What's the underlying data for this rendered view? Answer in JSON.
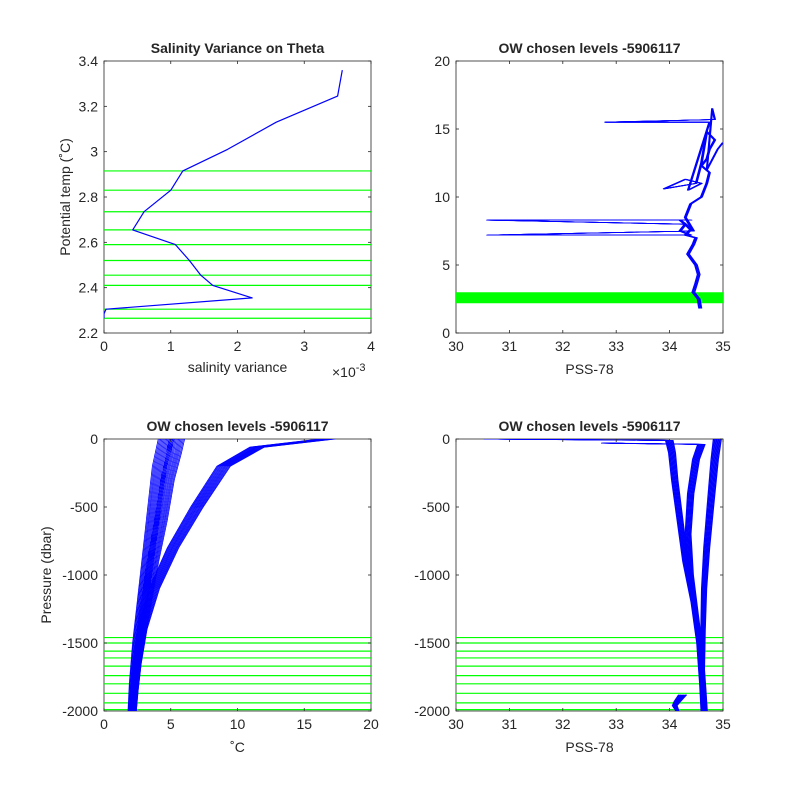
{
  "chart_data": [
    {
      "id": "p1",
      "type": "line",
      "title": "Salinity Variance on Theta",
      "xlabel": "salinity variance",
      "ylabel": "Potential temp (˚C)",
      "x_exponent": "×10",
      "x_exponent_power": "-3",
      "xlim": [
        0,
        0.004
      ],
      "ylim": [
        2.2,
        3.4
      ],
      "xticks": [
        0,
        0.001,
        0.002,
        0.003,
        0.004
      ],
      "xtick_labels": [
        "0",
        "1",
        "2",
        "3",
        "4"
      ],
      "yticks": [
        2.2,
        2.4,
        2.6,
        2.8,
        3.0,
        3.2,
        3.4
      ],
      "ytick_labels": [
        "2.2",
        "2.4",
        "2.6",
        "2.8",
        "3",
        "3.2",
        "3.4"
      ],
      "grid": false,
      "series": [
        {
          "color": "#0000ff",
          "x": [
            0.00357,
            0.0035,
            0.00258,
            0.00185,
            0.00118,
            0.001,
            0.0006,
            0.00043,
            0.00107,
            0.00128,
            0.00145,
            0.00163,
            0.00222,
            3e-05,
            0.0,
            0.0
          ],
          "y": [
            3.36,
            3.245,
            3.13,
            3.01,
            2.915,
            2.83,
            2.735,
            2.655,
            2.59,
            2.52,
            2.455,
            2.41,
            2.355,
            2.305,
            2.285,
            2.265
          ]
        }
      ],
      "hlines": {
        "color": "#00ff00",
        "y": [
          2.265,
          2.305,
          2.41,
          2.455,
          2.52,
          2.59,
          2.655,
          2.735,
          2.83,
          2.915
        ]
      }
    },
    {
      "id": "p2",
      "type": "line",
      "title": "OW chosen levels -5906117",
      "xlabel": "PSS-78",
      "ylabel": "",
      "xlim": [
        30,
        35
      ],
      "ylim": [
        0,
        20
      ],
      "xticks": [
        30,
        31,
        32,
        33,
        34,
        35
      ],
      "xtick_labels": [
        "30",
        "31",
        "32",
        "33",
        "34",
        "35"
      ],
      "yticks": [
        0,
        5,
        10,
        15,
        20
      ],
      "ytick_labels": [
        "0",
        "5",
        "10",
        "15",
        "20"
      ],
      "grid": false,
      "series": [
        {
          "color": "#0000ff",
          "x": [
            34.58,
            34.55,
            34.45,
            34.5,
            34.55,
            34.5,
            34.35,
            34.45,
            34.5,
            34.3,
            34.4,
            34.3,
            34.2,
            34.4,
            30.6,
            34.3,
            34.2,
            34.4,
            30.6,
            34.45,
            34.3,
            34.4,
            34.6,
            34.7,
            34.75,
            34.6,
            34.7,
            34.75,
            34.85,
            34.7,
            34.6,
            34.5,
            33.9,
            34.3,
            34.6,
            34.35,
            34.75,
            32.8,
            34.85,
            34.8,
            34.7,
            34.9,
            35.0
          ],
          "y": [
            1.8,
            2.5,
            3.0,
            3.6,
            4.3,
            5.0,
            5.8,
            6.5,
            7.0,
            7.2,
            7.6,
            8.0,
            8.3,
            8.3,
            8.3,
            8.0,
            7.5,
            7.2,
            7.2,
            7.5,
            8.5,
            9.5,
            10.0,
            11.0,
            11.8,
            12.3,
            12.8,
            13.5,
            14.2,
            14.8,
            12.5,
            11.0,
            10.6,
            11.3,
            11.0,
            10.5,
            15.5,
            15.5,
            15.7,
            16.5,
            12.0,
            13.5,
            14.0
          ]
        }
      ],
      "hlines": {
        "color": "#00ff00",
        "y": [
          2.27,
          2.31,
          2.41,
          2.46,
          2.52,
          2.59,
          2.66,
          2.74,
          2.83,
          2.92
        ]
      }
    },
    {
      "id": "p3",
      "type": "line",
      "title": "OW chosen levels -5906117",
      "xlabel": "˚C",
      "ylabel": "Pressure (dbar)",
      "xlim": [
        0,
        20
      ],
      "ylim": [
        -2000,
        0
      ],
      "xticks": [
        0,
        5,
        10,
        15,
        20
      ],
      "xtick_labels": [
        "0",
        "5",
        "10",
        "15",
        "20"
      ],
      "yticks": [
        -2000,
        -1500,
        -1000,
        -500,
        0
      ],
      "ytick_labels": [
        "-2000",
        "-1500",
        "-1000",
        "-500",
        "0"
      ],
      "grid": false,
      "series": [
        {
          "color": "#0000ff",
          "x": [
            5.5,
            5.3,
            4.8,
            4.3,
            3.7,
            3.2,
            2.8,
            2.5,
            2.3,
            2.2
          ],
          "y": [
            0,
            -100,
            -300,
            -600,
            -900,
            -1200,
            -1450,
            -1650,
            -1850,
            -2000
          ]
        },
        {
          "color": "#0000ff",
          "x": [
            16.8,
            11.5,
            9.0,
            7.0,
            5.2,
            3.8,
            2.9,
            2.5,
            2.3,
            2.2
          ],
          "y": [
            0,
            -60,
            -200,
            -500,
            -800,
            -1100,
            -1400,
            -1650,
            -1850,
            -2000
          ]
        },
        {
          "color": "#0000ff",
          "x": [
            4.7,
            4.2,
            3.8,
            3.3,
            2.9,
            2.5,
            2.2,
            2.05
          ],
          "y": [
            0,
            -200,
            -500,
            -900,
            -1200,
            -1500,
            -1800,
            -2000
          ]
        }
      ],
      "hlines": {
        "color": "#00ff00",
        "y": [
          -1460,
          -1500,
          -1560,
          -1610,
          -1670,
          -1740,
          -1800,
          -1870,
          -1940,
          -1990
        ]
      }
    },
    {
      "id": "p4",
      "type": "line",
      "title": "OW chosen levels -5906117",
      "xlabel": "PSS-78",
      "ylabel": "",
      "xlim": [
        30,
        35
      ],
      "ylim": [
        -2000,
        0
      ],
      "xticks": [
        30,
        31,
        32,
        33,
        34,
        35
      ],
      "xtick_labels": [
        "30",
        "31",
        "32",
        "33",
        "34",
        "35"
      ],
      "yticks": [
        -2000,
        -1500,
        -1000,
        -500,
        0
      ],
      "ytick_labels": [
        "-2000",
        "-1500",
        "-1000",
        "-500",
        "0"
      ],
      "grid": false,
      "series": [
        {
          "color": "#0000ff",
          "x": [
            30.6,
            34.0,
            34.05,
            34.1,
            34.2,
            34.3,
            34.45,
            34.55,
            34.6,
            34.62
          ],
          "y": [
            0,
            -10,
            -100,
            -300,
            -600,
            -900,
            -1200,
            -1500,
            -1800,
            -2000
          ]
        },
        {
          "color": "#0000ff",
          "x": [
            32.8,
            34.6,
            34.5,
            34.4,
            34.35,
            34.4,
            34.5,
            34.6,
            34.65,
            34.68
          ],
          "y": [
            -30,
            -40,
            -150,
            -400,
            -700,
            -1000,
            -1300,
            -1600,
            -1850,
            -2000
          ]
        },
        {
          "color": "#0000ff",
          "x": [
            34.9,
            34.85,
            34.78,
            34.7,
            34.65,
            34.63,
            34.62,
            34.62
          ],
          "y": [
            0,
            -150,
            -450,
            -800,
            -1100,
            -1400,
            -1700,
            -2000
          ]
        },
        {
          "color": "#0000ff",
          "x": [
            34.25,
            34.15,
            34.1,
            34.15
          ],
          "y": [
            -1880,
            -1930,
            -1960,
            -2000
          ]
        }
      ],
      "hlines": {
        "color": "#00ff00",
        "y": [
          -1460,
          -1500,
          -1560,
          -1610,
          -1670,
          -1740,
          -1800,
          -1870,
          -1940,
          -1990
        ]
      }
    }
  ]
}
